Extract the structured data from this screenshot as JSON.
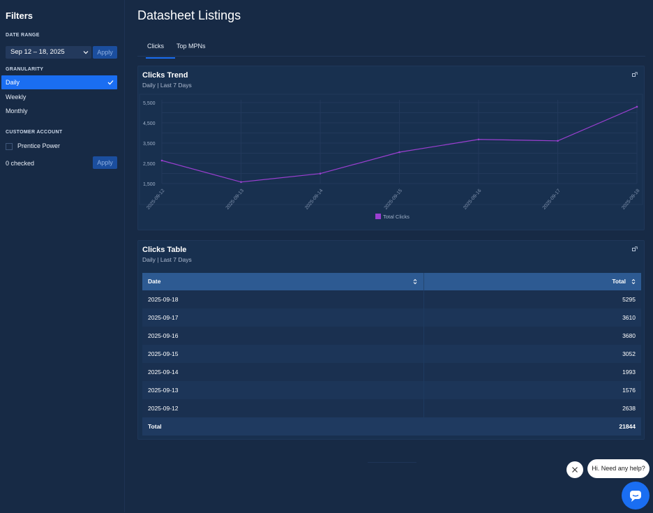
{
  "sidebar": {
    "title": "Filters",
    "date_range": {
      "label": "DATE RANGE",
      "value": "Sep 12 – 18, 2025",
      "apply": "Apply"
    },
    "granularity": {
      "label": "GRANULARITY",
      "options": [
        "Daily",
        "Weekly",
        "Monthly"
      ],
      "selected": "Daily"
    },
    "customer_account": {
      "label": "CUSTOMER ACCOUNT",
      "option": "Prentice Power",
      "checked_count": "0 checked",
      "apply": "Apply"
    }
  },
  "page": {
    "title": "Datasheet Listings",
    "tabs": [
      "Clicks",
      "Top MPNs"
    ],
    "active_tab": "Clicks"
  },
  "trend_card": {
    "title": "Clicks Trend",
    "subtitle": "Daily | Last 7 Days"
  },
  "chart_data": {
    "type": "line",
    "x": [
      "2025-09-12",
      "2025-09-13",
      "2025-09-14",
      "2025-09-15",
      "2025-09-16",
      "2025-09-17",
      "2025-09-18"
    ],
    "series": [
      {
        "name": "Total Clicks",
        "values": [
          2638,
          1576,
          1993,
          3052,
          3680,
          3610,
          5295
        ],
        "color": "#9b3fd1"
      }
    ],
    "yticks": [
      "5,500",
      "4,500",
      "3,500",
      "2,500",
      "1,500"
    ],
    "ylim": [
      1500,
      5500
    ],
    "grid": true,
    "legend": "bottom-center"
  },
  "table_card": {
    "title": "Clicks Table",
    "subtitle": "Daily | Last 7 Days",
    "columns": [
      "Date",
      "Total"
    ],
    "rows": [
      [
        "2025-09-18",
        "5295"
      ],
      [
        "2025-09-17",
        "3610"
      ],
      [
        "2025-09-16",
        "3680"
      ],
      [
        "2025-09-15",
        "3052"
      ],
      [
        "2025-09-14",
        "1993"
      ],
      [
        "2025-09-13",
        "1576"
      ],
      [
        "2025-09-12",
        "2638"
      ]
    ],
    "total_label": "Total",
    "total_value": "21844"
  },
  "chat": {
    "message": "Hi. Need any help?"
  },
  "colors": {
    "accent": "#1a6ef2",
    "background": "#172a45",
    "series": "#9b3fd1",
    "table_header": "#2d5a92"
  },
  "icons": [
    "chevron-down-icon",
    "checkmark-icon",
    "expand-icon",
    "sort-icon",
    "close-icon",
    "chat-icon"
  ]
}
